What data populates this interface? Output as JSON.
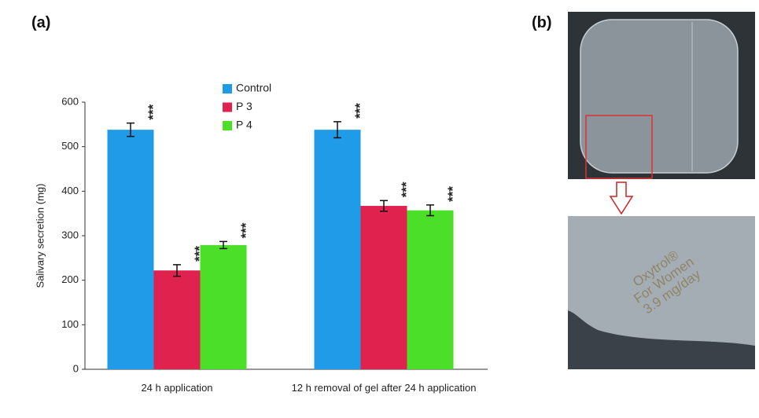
{
  "panels": [
    "(a)",
    "(b)"
  ],
  "chart_data": {
    "type": "bar",
    "y_label": "Salivary secretion (mg)",
    "categories": [
      "24 h application",
      "12 h removal of gel after 24 h application"
    ],
    "series": [
      {
        "name": "Control",
        "color": "#1f9be8",
        "values": [
          538,
          538
        ],
        "errors": [
          15,
          18
        ],
        "significance": [
          "***",
          "***"
        ]
      },
      {
        "name": "P 3",
        "color": "#e0224f",
        "values": [
          222,
          367
        ],
        "errors": [
          13,
          12
        ],
        "significance": [
          "***",
          "***"
        ]
      },
      {
        "name": "P 4",
        "color": "#4cdf2a",
        "values": [
          279,
          357
        ],
        "errors": [
          8,
          12
        ],
        "significance": [
          "***",
          "***"
        ]
      }
    ],
    "ylim": [
      0,
      600
    ],
    "yticks": [
      0,
      100,
      200,
      300,
      400,
      500,
      600
    ],
    "grid": false
  },
  "photo": {
    "text_lines": [
      "Oxytrol®",
      "For Women",
      "3.9 mg/day"
    ]
  }
}
